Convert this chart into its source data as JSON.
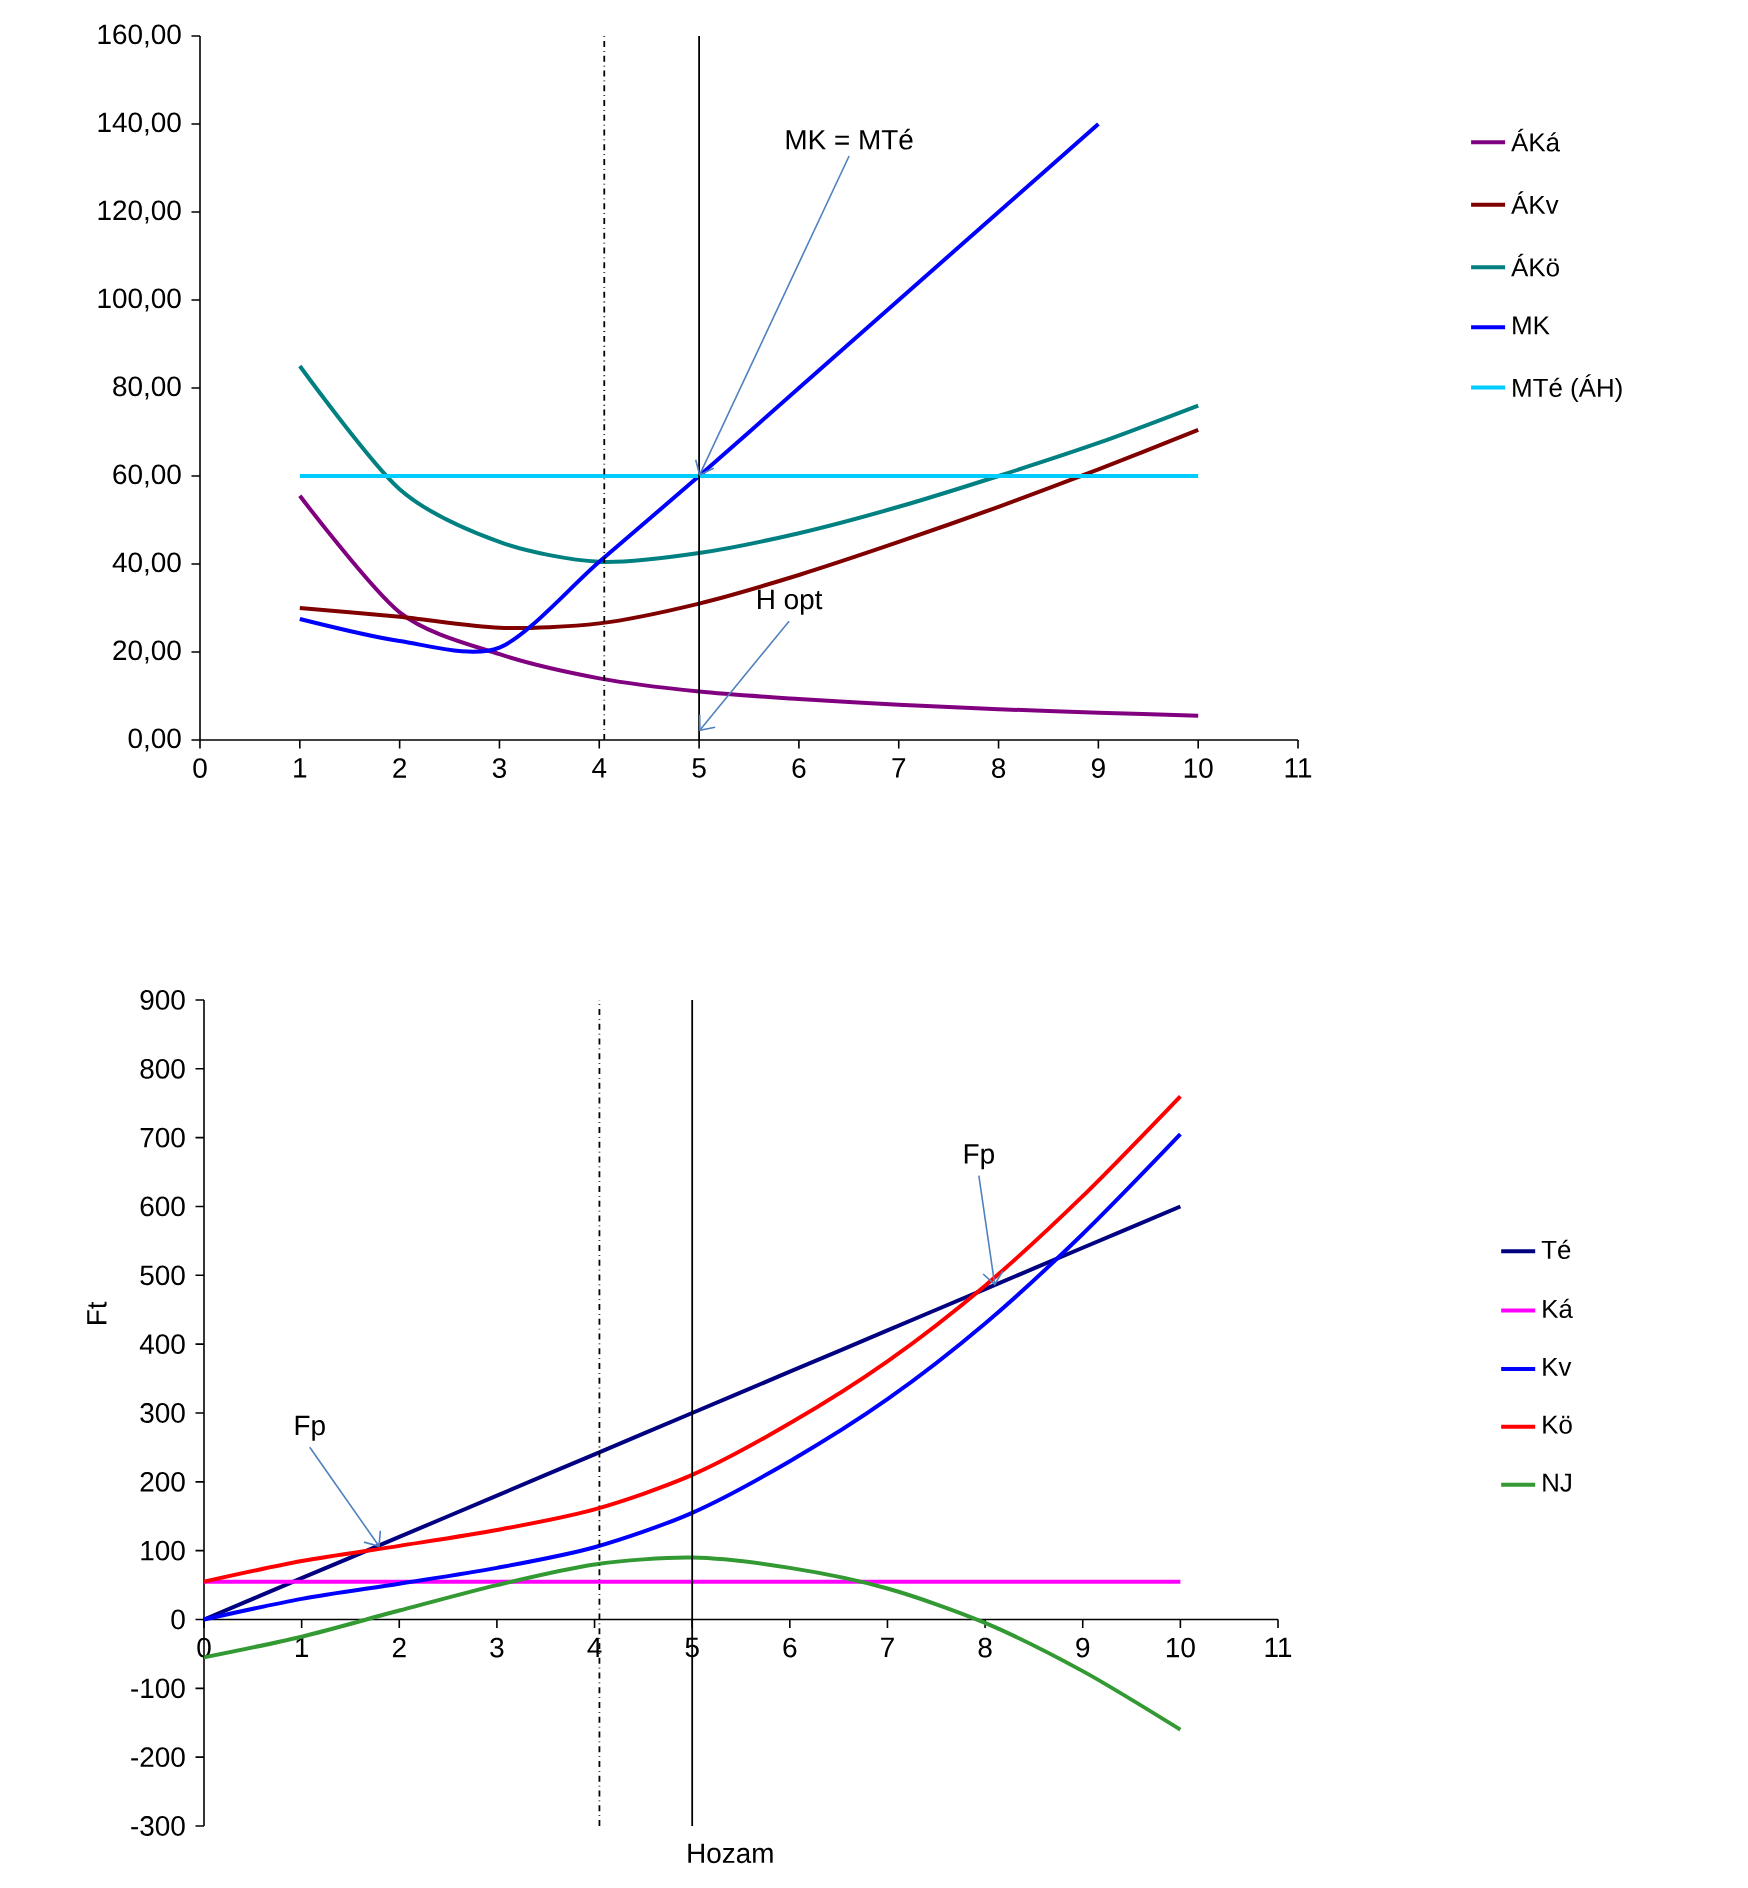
{
  "chart_data": [
    {
      "type": "line",
      "x": [
        1,
        2,
        3,
        4,
        5,
        6,
        7,
        8,
        9,
        10
      ],
      "series": [
        {
          "name": "ÁKá",
          "color": "#800080",
          "values": [
            55.5,
            29,
            19.5,
            14,
            11,
            9.3,
            8,
            7,
            6.2,
            5.5
          ]
        },
        {
          "name": "ÁKv",
          "color": "#800000",
          "values": [
            30,
            28,
            25.5,
            26.5,
            31,
            37.5,
            45,
            53,
            61.5,
            70.5
          ]
        },
        {
          "name": "ÁKö",
          "color": "#008080",
          "values": [
            85,
            57,
            45,
            40.5,
            42.5,
            47,
            53,
            60,
            67.5,
            76
          ]
        },
        {
          "name": "MK",
          "color": "#0000ff",
          "values": [
            27.5,
            22.5,
            21,
            40.5,
            60,
            80,
            100,
            120,
            140,
            null
          ]
        },
        {
          "name": "MTé (ÁH)",
          "color": "#00ccff",
          "values": [
            60,
            60,
            60,
            60,
            60,
            60,
            60,
            60,
            60,
            60
          ]
        }
      ],
      "xlim": [
        0,
        11
      ],
      "xticks": [
        0,
        1,
        2,
        3,
        4,
        5,
        6,
        7,
        8,
        9,
        10,
        11
      ],
      "ylim": [
        0,
        160
      ],
      "yticks": [
        {
          "value": 0,
          "label": "0,00"
        },
        {
          "value": 20,
          "label": "20,00"
        },
        {
          "value": 40,
          "label": "40,00"
        },
        {
          "value": 60,
          "label": "60,00"
        },
        {
          "value": 80,
          "label": "80,00"
        },
        {
          "value": 100,
          "label": "100,00"
        },
        {
          "value": 120,
          "label": "120,00"
        },
        {
          "value": 140,
          "label": "140,00"
        },
        {
          "value": 160,
          "label": "160,00"
        }
      ],
      "legend": "right",
      "ref_lines": [
        {
          "axis": "x",
          "value": 4.05,
          "color": "#000000",
          "line_style": "dashdot"
        },
        {
          "axis": "x",
          "value": 5,
          "color": "#000000",
          "line_style": "solid"
        }
      ],
      "annotations": [
        {
          "text": "MK = MTé",
          "x": 5,
          "y": 60
        },
        {
          "text": "H opt",
          "x": 5,
          "y": 2
        }
      ]
    },
    {
      "type": "line",
      "x": [
        0,
        1,
        2,
        3,
        4,
        5,
        6,
        7,
        8,
        9,
        10
      ],
      "series": [
        {
          "name": "Té",
          "color": "#000080",
          "values": [
            0,
            60,
            120,
            180,
            240,
            300,
            360,
            420,
            480,
            540,
            600
          ]
        },
        {
          "name": "Ká",
          "color": "#ff00ff",
          "values": [
            55,
            55,
            55,
            55,
            55,
            55,
            55,
            55,
            55,
            55,
            55
          ]
        },
        {
          "name": "Kv",
          "color": "#0000ff",
          "values": [
            0,
            30,
            52,
            75,
            105,
            155,
            230,
            320,
            430,
            560,
            705
          ]
        },
        {
          "name": "Kö",
          "color": "#ff0000",
          "values": [
            55,
            85,
            107,
            130,
            160,
            210,
            285,
            375,
            485,
            615,
            760
          ]
        },
        {
          "name": "NJ",
          "color": "#339933",
          "values": [
            -55,
            -25,
            13,
            50,
            80,
            90,
            75,
            45,
            -5,
            -75,
            -160
          ]
        }
      ],
      "xlim": [
        0,
        11
      ],
      "xticks": [
        0,
        1,
        2,
        3,
        4,
        5,
        6,
        7,
        8,
        9,
        10,
        11
      ],
      "ylim": [
        -300,
        900
      ],
      "yticks": [
        -300,
        -200,
        -100,
        0,
        100,
        200,
        300,
        400,
        500,
        600,
        700,
        800,
        900
      ],
      "xlabel": "Hozam",
      "ylabel": "Ft",
      "legend": "right",
      "ref_lines": [
        {
          "axis": "x",
          "value": 4.05,
          "color": "#000000",
          "line_style": "dashdot"
        },
        {
          "axis": "x",
          "value": 5,
          "color": "#000000",
          "line_style": "solid"
        }
      ],
      "annotations": [
        {
          "text": "Fp",
          "x": 1.8,
          "y": 105
        },
        {
          "text": "Fp",
          "x": 8.1,
          "y": 485
        }
      ]
    }
  ]
}
